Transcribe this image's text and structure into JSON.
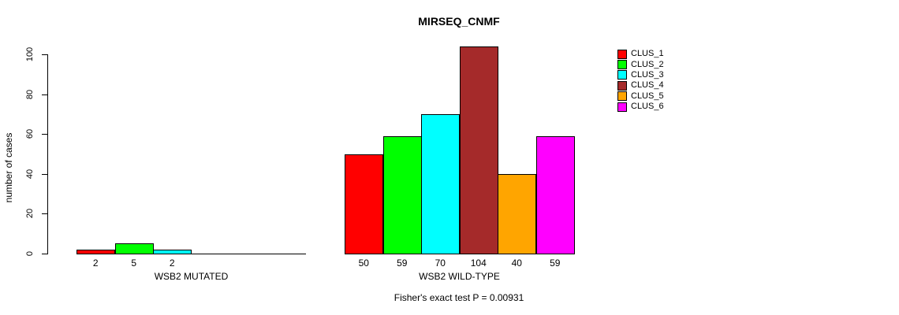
{
  "chart_data": {
    "type": "bar",
    "title": "MIRSEQ_CNMF",
    "ylabel": "number of cases",
    "xlabel": "",
    "ylim": [
      0,
      100
    ],
    "yticks": [
      0,
      20,
      40,
      60,
      80,
      100
    ],
    "grid": false,
    "categories": [
      "CLUS_1",
      "CLUS_2",
      "CLUS_3",
      "CLUS_4",
      "CLUS_5",
      "CLUS_6"
    ],
    "series_colors": [
      "#FF0000",
      "#00FF00",
      "#00FFFF",
      "#A52A2A",
      "#FFA500",
      "#FF00FF"
    ],
    "groups": [
      {
        "name": "WSB2 MUTATED",
        "values": [
          2,
          5,
          2,
          0,
          0,
          0
        ],
        "bar_labels": [
          "2",
          "5",
          "2",
          "",
          "",
          ""
        ]
      },
      {
        "name": "WSB2 WILD-TYPE",
        "values": [
          50,
          59,
          70,
          104,
          40,
          59
        ],
        "bar_labels": [
          "50",
          "59",
          "70",
          "104",
          "40",
          "59"
        ]
      }
    ],
    "legend": {
      "position": "right",
      "entries": [
        {
          "label": "CLUS_1",
          "color": "#FF0000"
        },
        {
          "label": "CLUS_2",
          "color": "#00FF00"
        },
        {
          "label": "CLUS_3",
          "color": "#00FFFF"
        },
        {
          "label": "CLUS_4",
          "color": "#A52A2A"
        },
        {
          "label": "CLUS_5",
          "color": "#FFA500"
        },
        {
          "label": "CLUS_6",
          "color": "#FF00FF"
        }
      ]
    },
    "annotation": "Fisher's exact test P = 0.00931"
  }
}
